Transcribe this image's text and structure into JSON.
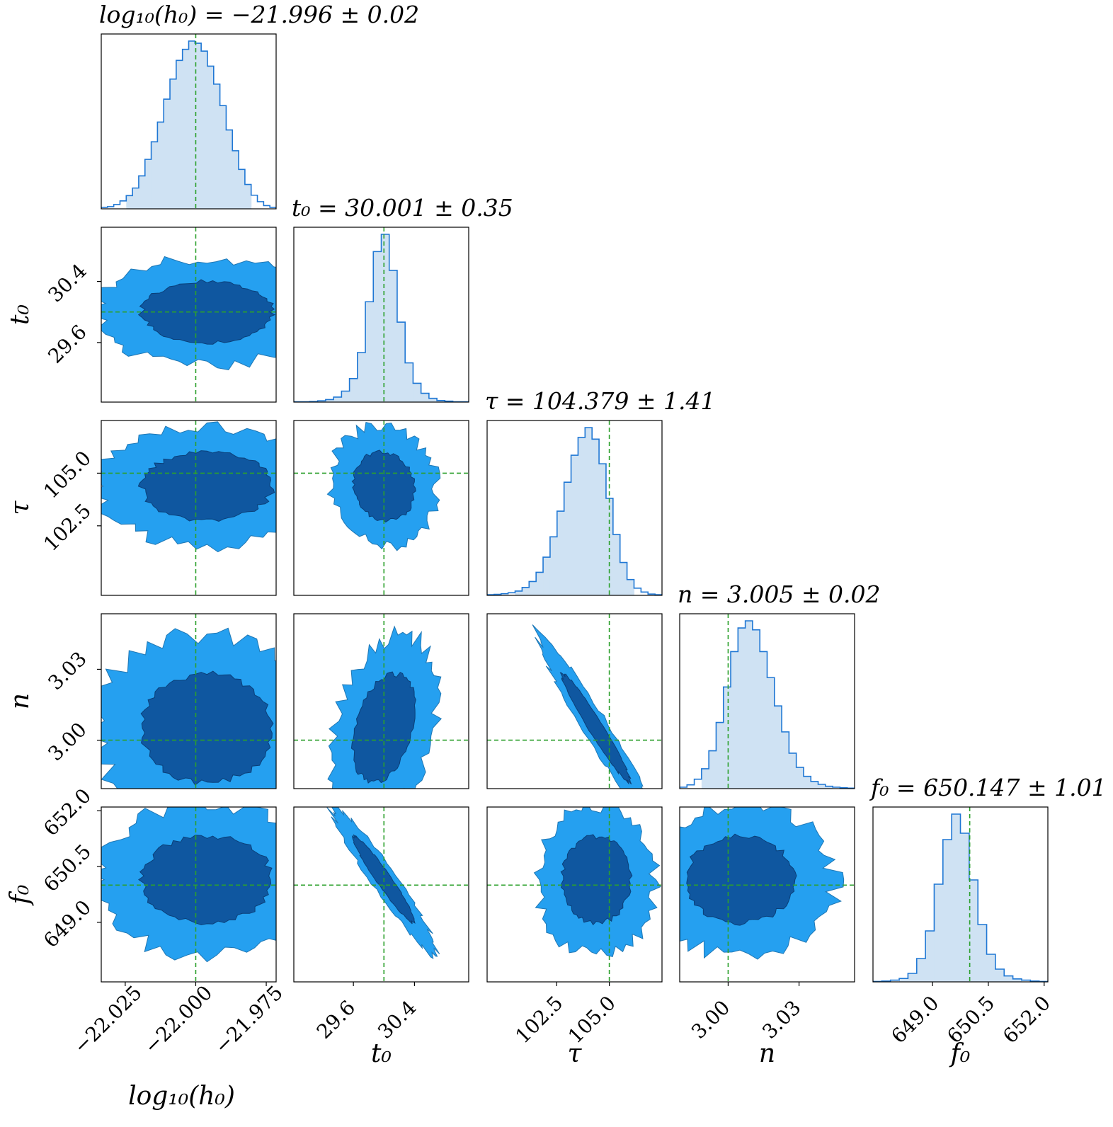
{
  "chart_data": {
    "type": "corner",
    "description_series": "posterior samples",
    "params": [
      {
        "key": "log10h0",
        "label": "log₁₀(h₀)",
        "title_lhs": "log₁₀(h₀)",
        "median": "−21.996",
        "err": "0.02",
        "range": [
          -22.0335,
          -21.9715
        ],
        "ticks": [
          -22.025,
          -22.0,
          -21.975
        ],
        "tick_labels": [
          "−22.025",
          "−22.000",
          "−21.975"
        ],
        "truth": -22.0,
        "hist": [
          0.4,
          0.6,
          1.2,
          2.2,
          3.7,
          5.8,
          9.2,
          13.8,
          18.7,
          24.2,
          30.6,
          36.2,
          41.4,
          44.5,
          46.8,
          46.2,
          44.0,
          39.8,
          34.8,
          28.8,
          22.0,
          16.2,
          11.0,
          6.8,
          3.8,
          2.0,
          0.9,
          0.4
        ]
      },
      {
        "key": "t0",
        "label": "t₀",
        "title_lhs": "t₀",
        "median": "30.001",
        "err": "0.35",
        "range": [
          28.82,
          31.11
        ],
        "ticks": [
          29.6,
          30.4
        ],
        "tick_labels": [
          "29.6",
          "30.4"
        ],
        "truth": 30.0,
        "hist": [
          0.1,
          0.1,
          0.2,
          0.4,
          0.8,
          1.6,
          3.5,
          7.5,
          15.8,
          32.0,
          48.0,
          53.5,
          42.0,
          25.5,
          12.5,
          6.0,
          2.8,
          1.2,
          0.5,
          0.3,
          0.1,
          0.1
        ]
      },
      {
        "key": "tau",
        "label": "τ",
        "title_lhs": "τ",
        "median": "104.379",
        "err": "1.41",
        "range": [
          99.2,
          107.5
        ],
        "ticks": [
          102.5,
          105.0
        ],
        "tick_labels": [
          "102.5",
          "105.0"
        ],
        "truth": 105.0,
        "hist": [
          0.2,
          0.3,
          0.5,
          0.8,
          1.3,
          2.4,
          4.2,
          7.0,
          11.6,
          17.8,
          25.6,
          34.4,
          42.6,
          48.0,
          51.0,
          47.5,
          40.0,
          29.5,
          18.5,
          10.0,
          4.8,
          2.2,
          1.0,
          0.4,
          0.2
        ]
      },
      {
        "key": "n",
        "label": "n",
        "title_lhs": "n",
        "median": "3.005",
        "err": "0.02",
        "range": [
          2.9795,
          3.0535
        ],
        "ticks": [
          3.0,
          3.03
        ],
        "tick_labels": [
          "3.00",
          "3.03"
        ],
        "truth": 3.0,
        "hist": [
          0.3,
          0.8,
          2.0,
          4.2,
          8.0,
          14.0,
          21.5,
          29.0,
          34.0,
          35.5,
          33.6,
          29.0,
          23.5,
          17.5,
          12.0,
          7.5,
          4.5,
          2.6,
          1.5,
          0.9,
          0.5,
          0.3,
          0.2,
          0.1
        ]
      },
      {
        "key": "f0",
        "label": "f₀",
        "title_lhs": "f₀",
        "median": "650.147",
        "err": "1.01",
        "range": [
          647.4,
          652.1
        ],
        "ticks": [
          649.0,
          650.5,
          652.0
        ],
        "tick_labels": [
          "649.0",
          "650.5",
          "652.0"
        ],
        "truth": 650.0,
        "hist": [
          0.1,
          0.2,
          0.4,
          0.8,
          2.0,
          5.5,
          12.0,
          23.0,
          33.5,
          39.5,
          35.0,
          24.0,
          13.5,
          6.5,
          3.0,
          1.4,
          0.7,
          0.4,
          0.2,
          0.1
        ]
      }
    ],
    "correlations": [
      {
        "pair": [
          "t0",
          "log10h0"
        ],
        "rho": 0.0
      },
      {
        "pair": [
          "tau",
          "log10h0"
        ],
        "rho": 0.0
      },
      {
        "pair": [
          "tau",
          "t0"
        ],
        "rho": -0.1
      },
      {
        "pair": [
          "n",
          "log10h0"
        ],
        "rho": 0.0
      },
      {
        "pair": [
          "n",
          "t0"
        ],
        "rho": 0.35
      },
      {
        "pair": [
          "n",
          "tau"
        ],
        "rho": -0.97
      },
      {
        "pair": [
          "f0",
          "log10h0"
        ],
        "rho": 0.0
      },
      {
        "pair": [
          "f0",
          "t0"
        ],
        "rho": -0.96
      },
      {
        "pair": [
          "f0",
          "tau"
        ],
        "rho": 0.0
      },
      {
        "pair": [
          "f0",
          "n"
        ],
        "rho": 0.0
      }
    ],
    "colors": {
      "hist_line": "#1f77d4",
      "hist_fill": "#cfe2f3",
      "contour_outer": "#25a0f0",
      "contour_inner": "#0f57a0",
      "truth": "#2ca02c"
    }
  }
}
